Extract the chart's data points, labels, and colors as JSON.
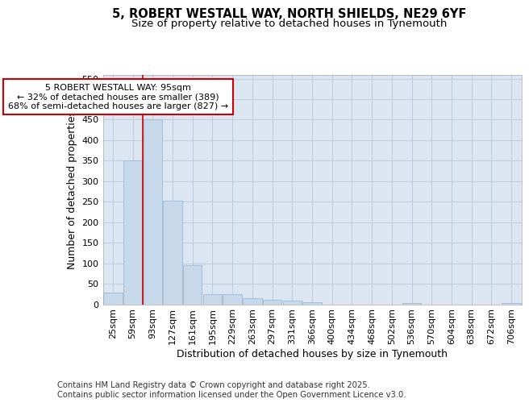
{
  "title_line1": "5, ROBERT WESTALL WAY, NORTH SHIELDS, NE29 6YF",
  "title_line2": "Size of property relative to detached houses in Tynemouth",
  "xlabel": "Distribution of detached houses by size in Tynemouth",
  "ylabel": "Number of detached properties",
  "categories": [
    "25sqm",
    "59sqm",
    "93sqm",
    "127sqm",
    "161sqm",
    "195sqm",
    "229sqm",
    "263sqm",
    "297sqm",
    "331sqm",
    "366sqm",
    "400sqm",
    "434sqm",
    "468sqm",
    "502sqm",
    "536sqm",
    "570sqm",
    "604sqm",
    "638sqm",
    "672sqm",
    "706sqm"
  ],
  "values": [
    28,
    350,
    450,
    252,
    95,
    25,
    25,
    14,
    11,
    9,
    5,
    0,
    0,
    0,
    0,
    3,
    0,
    0,
    0,
    0,
    3
  ],
  "bar_color": "#c8d8eb",
  "bar_edge_color": "#a0b8d0",
  "vline_x": 1.5,
  "vline_color": "#cc0000",
  "annotation_title": "5 ROBERT WESTALL WAY: 95sqm",
  "annotation_line2": "← 32% of detached houses are smaller (389)",
  "annotation_line3": "68% of semi-detached houses are larger (827) →",
  "ylim": [
    0,
    560
  ],
  "yticks": [
    0,
    50,
    100,
    150,
    200,
    250,
    300,
    350,
    400,
    450,
    500,
    550
  ],
  "plot_bg_color": "#dce6f2",
  "grid_color": "#b8c8da",
  "title_fontsize": 10.5,
  "subtitle_fontsize": 9.5,
  "axis_label_fontsize": 9,
  "tick_fontsize": 8,
  "annotation_fontsize": 8,
  "footer_fontsize": 7.2,
  "footer_line1": "Contains HM Land Registry data © Crown copyright and database right 2025.",
  "footer_line2": "Contains public sector information licensed under the Open Government Licence v3.0."
}
